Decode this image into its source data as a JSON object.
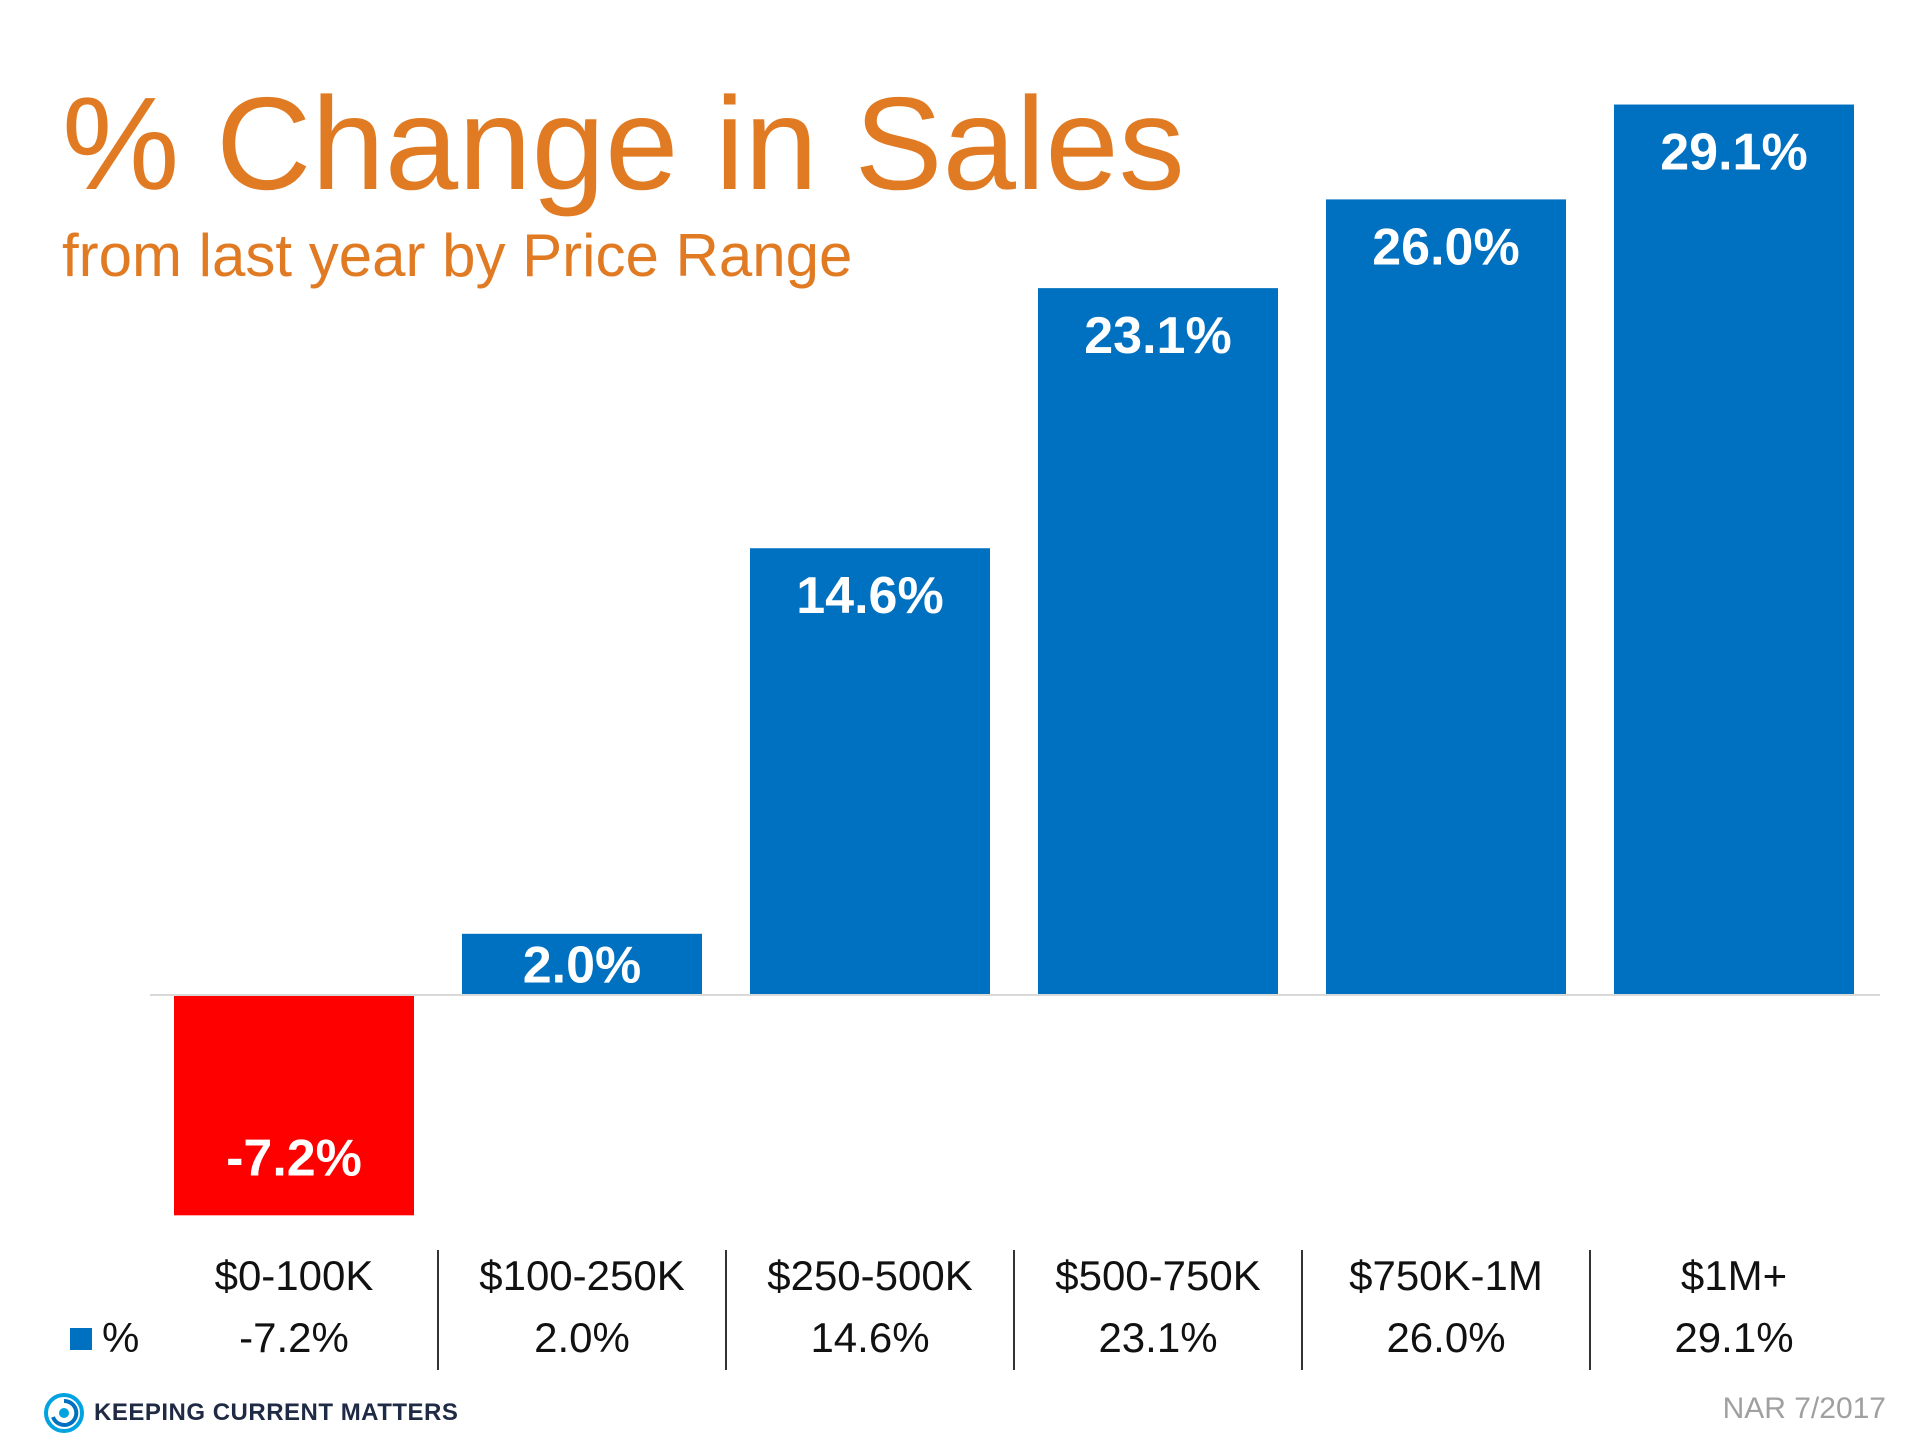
{
  "header": {
    "title": "% Change in Sales",
    "subtitle": "from last year by Price Range"
  },
  "colors": {
    "positive": "#0070C0",
    "negative": "#FF0000",
    "accent": "#E07B24"
  },
  "chart_data": {
    "type": "bar",
    "categories": [
      "$0-100K",
      "$100-250K",
      "$250-500K",
      "$500-750K",
      "$750K-1M",
      "$1M+"
    ],
    "series": [
      {
        "name": "%",
        "values": [
          -7.2,
          2.0,
          14.6,
          23.1,
          26.0,
          29.1
        ]
      }
    ],
    "data_labels": [
      "-7.2%",
      "2.0%",
      "14.6%",
      "23.1%",
      "26.0%",
      "29.1%"
    ],
    "table_values": [
      "-7.2%",
      "2.0%",
      "14.6%",
      "23.1%",
      "26.0%",
      "29.1%"
    ],
    "legend_label": "%",
    "title": "% Change in Sales",
    "subtitle": "from last year by Price Range",
    "ylim": [
      -7.2,
      29.1
    ],
    "grid": false
  },
  "footer": {
    "logo_text": "KEEPING CURRENT MATTERS",
    "source": "NAR  7/2017",
    "logo_icon": "swirl-icon"
  }
}
